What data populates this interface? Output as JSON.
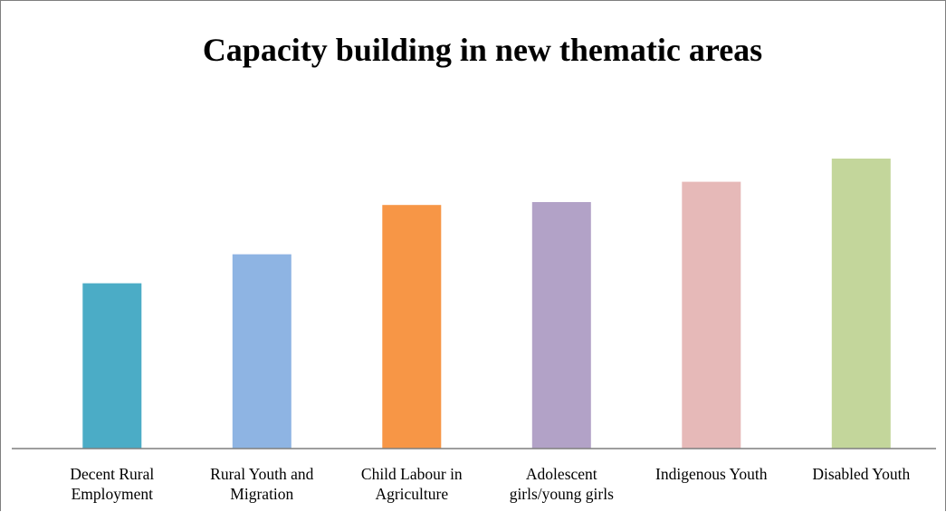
{
  "chart_data": {
    "type": "bar",
    "title": "Capacity building in new thematic areas",
    "xlabel": "",
    "ylabel": "",
    "categories": [
      [
        "Decent Rural",
        "Employment"
      ],
      [
        "Rural Youth and",
        "Migration"
      ],
      [
        "Child Labour in",
        "Agriculture"
      ],
      [
        "Adolescent",
        "girls/young girls"
      ],
      [
        "Indigenous Youth"
      ],
      [
        "Disabled Youth"
      ]
    ],
    "values": [
      57,
      67,
      84,
      85,
      92,
      100
    ],
    "colors": [
      "#4bacc6",
      "#8eb4e3",
      "#f79646",
      "#b2a2c7",
      "#e6b9b8",
      "#c3d69b"
    ],
    "ylim": [
      0,
      100
    ],
    "grid": false,
    "legend": "none",
    "axis_color": "#7f7f7f"
  }
}
